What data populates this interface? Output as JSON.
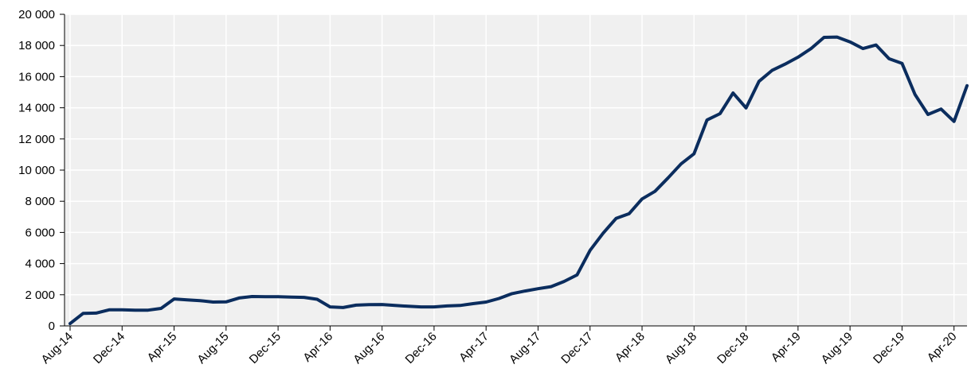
{
  "chart_data": {
    "type": "line",
    "title": "",
    "xlabel": "",
    "ylabel": "",
    "ylim": [
      0,
      20000
    ],
    "yticks": [
      0,
      2000,
      4000,
      6000,
      8000,
      10000,
      12000,
      14000,
      16000,
      18000,
      20000
    ],
    "ytick_labels": [
      "0",
      "2 000",
      "4 000",
      "6 000",
      "8 000",
      "10 000",
      "12 000",
      "14 000",
      "16 000",
      "18 000",
      "20 000"
    ],
    "xtick_labels": [
      "Aug-14",
      "Dec-14",
      "Apr-15",
      "Aug-15",
      "Dec-15",
      "Apr-16",
      "Aug-16",
      "Dec-16",
      "Apr-17",
      "Aug-17",
      "Dec-17",
      "Apr-18",
      "Aug-18",
      "Dec-18",
      "Apr-19",
      "Aug-19",
      "Dec-19",
      "Apr-20"
    ],
    "grid": true,
    "colors": {
      "line": "#0b2d5e",
      "plot_bg": "#f0f0f0",
      "grid": "#ffffff"
    },
    "series": [
      {
        "x": [
          "Aug-14",
          "Sep-14",
          "Oct-14",
          "Nov-14",
          "Dec-14",
          "Jan-15",
          "Feb-15",
          "Mar-15",
          "Apr-15",
          "May-15",
          "Jun-15",
          "Jul-15",
          "Aug-15",
          "Sep-15",
          "Oct-15",
          "Nov-15",
          "Dec-15",
          "Jan-16",
          "Feb-16",
          "Mar-16",
          "Apr-16",
          "May-16",
          "Jun-16",
          "Jul-16",
          "Aug-16",
          "Sep-16",
          "Oct-16",
          "Nov-16",
          "Dec-16",
          "Jan-17",
          "Feb-17",
          "Mar-17",
          "Apr-17",
          "May-17",
          "Jun-17",
          "Jul-17",
          "Aug-17",
          "Sep-17",
          "Oct-17",
          "Nov-17",
          "Dec-17",
          "Jan-18",
          "Feb-18",
          "Mar-18",
          "Apr-18",
          "May-18",
          "Jun-18",
          "Jul-18",
          "Aug-18",
          "Sep-18",
          "Oct-18",
          "Nov-18",
          "Dec-18",
          "Jan-19",
          "Feb-19",
          "Mar-19",
          "Apr-19",
          "May-19",
          "Jun-19",
          "Jul-19",
          "Aug-19",
          "Sep-19",
          "Oct-19",
          "Nov-19",
          "Dec-19",
          "Jan-20",
          "Feb-20",
          "Mar-20",
          "Apr-20",
          "May-20"
        ],
        "values": [
          150,
          800,
          820,
          1030,
          1030,
          1010,
          1010,
          1120,
          1730,
          1670,
          1620,
          1530,
          1540,
          1790,
          1890,
          1870,
          1870,
          1850,
          1830,
          1710,
          1220,
          1180,
          1330,
          1360,
          1370,
          1310,
          1260,
          1220,
          1220,
          1280,
          1310,
          1430,
          1530,
          1760,
          2070,
          2240,
          2390,
          2520,
          2850,
          3270,
          4850,
          5950,
          6900,
          7200,
          8150,
          8640,
          9500,
          10400,
          11050,
          13220,
          13620,
          14950,
          13990,
          15700,
          16400,
          16800,
          17250,
          17800,
          18520,
          18540,
          18230,
          17800,
          18030,
          17150,
          16850,
          14850,
          13570,
          13920,
          13120,
          15420
        ]
      }
    ]
  }
}
